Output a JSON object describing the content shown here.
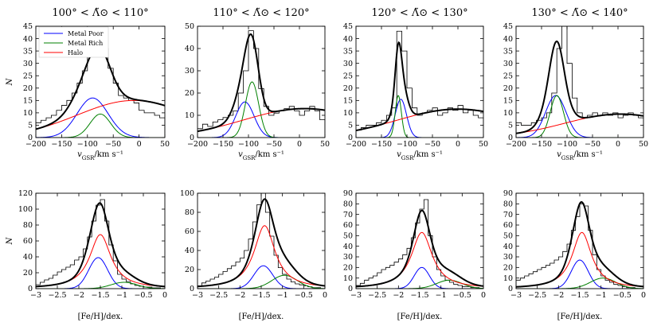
{
  "figure": {
    "ylabel": "N",
    "legend_entries": [
      {
        "label": "Metal Poor",
        "color": "#0000ff"
      },
      {
        "label": "Metal Rich",
        "color": "#008000"
      },
      {
        "label": "Halo",
        "color": "#ff0000"
      }
    ],
    "colors": {
      "metal_poor": "#0000ff",
      "metal_rich": "#008000",
      "halo": "#ff0000",
      "total": "#000000",
      "histogram": "#000000"
    }
  },
  "chart_data": [
    {
      "type": "line",
      "row": "velocity",
      "column": 1,
      "title": "100° < Λ̃⊙ < 110°",
      "xlabel": "vGSR/km s⁻¹",
      "ylabel": "N",
      "xlim": [
        -200,
        50
      ],
      "ylim": [
        0,
        45
      ],
      "xticks": [
        -200,
        -150,
        -100,
        -50,
        0,
        50
      ],
      "yticks": [
        0,
        5,
        10,
        15,
        20,
        25,
        30,
        35,
        40,
        45
      ],
      "legend": "top-left",
      "histogram": {
        "edges": [
          -200,
          -190,
          -180,
          -170,
          -160,
          -150,
          -140,
          -130,
          -120,
          -110,
          -100,
          -90,
          -80,
          -70,
          -60,
          -50,
          -40,
          -30,
          -20,
          -10,
          0,
          10,
          20,
          30,
          40,
          50
        ],
        "counts": [
          6,
          7,
          8,
          9,
          11,
          13,
          15,
          18,
          22,
          27,
          33,
          38,
          42,
          36,
          28,
          22,
          17,
          16,
          15,
          14,
          11,
          10,
          10,
          9,
          8
        ]
      },
      "series": [
        {
          "name": "Metal Poor",
          "color": "#0000ff",
          "model": "gaussian",
          "amplitude": 16,
          "mean": -90,
          "sigma": 30
        },
        {
          "name": "Metal Rich",
          "color": "#008000",
          "model": "gaussian",
          "amplitude": 9.5,
          "mean": -75,
          "sigma": 20
        },
        {
          "name": "Halo",
          "color": "#ff0000",
          "model": "gaussian",
          "amplitude": 15,
          "mean": -10,
          "sigma": 110
        },
        {
          "name": "Total",
          "color": "#000000",
          "model": "sum"
        }
      ]
    },
    {
      "type": "line",
      "row": "velocity",
      "column": 2,
      "title": "110° < Λ̃⊙ < 120°",
      "xlabel": "vGSR/km s⁻¹",
      "ylabel": "",
      "xlim": [
        -200,
        50
      ],
      "ylim": [
        0,
        50
      ],
      "xticks": [
        -200,
        -150,
        -100,
        -50,
        0,
        50
      ],
      "yticks": [
        0,
        10,
        20,
        30,
        40,
        50
      ],
      "histogram": {
        "edges": [
          -200,
          -190,
          -180,
          -170,
          -160,
          -150,
          -140,
          -130,
          -120,
          -110,
          -100,
          -90,
          -80,
          -70,
          -60,
          -50,
          -40,
          -30,
          -20,
          -10,
          0,
          10,
          20,
          30,
          40,
          50
        ],
        "counts": [
          4,
          6,
          5,
          7,
          8,
          9,
          10,
          12,
          20,
          30,
          48,
          40,
          22,
          14,
          10,
          11,
          12,
          13,
          14,
          12,
          10,
          12,
          14,
          12,
          8
        ]
      },
      "series": [
        {
          "name": "Metal Poor",
          "color": "#0000ff",
          "model": "gaussian",
          "amplitude": 16,
          "mean": -107,
          "sigma": 18
        },
        {
          "name": "Metal Rich",
          "color": "#008000",
          "model": "gaussian",
          "amplitude": 25,
          "mean": -93,
          "sigma": 13
        },
        {
          "name": "Halo",
          "color": "#ff0000",
          "model": "gaussian",
          "amplitude": 13,
          "mean": 10,
          "sigma": 120
        },
        {
          "name": "Total",
          "color": "#000000",
          "model": "sum"
        }
      ]
    },
    {
      "type": "line",
      "row": "velocity",
      "column": 3,
      "title": "120° < Λ̃⊙ < 130°",
      "xlabel": "vGSR/km s⁻¹",
      "ylabel": "",
      "xlim": [
        -200,
        50
      ],
      "ylim": [
        0,
        45
      ],
      "xticks": [
        -200,
        -150,
        -100,
        -50,
        0,
        50
      ],
      "yticks": [
        0,
        5,
        10,
        15,
        20,
        25,
        30,
        35,
        40,
        45
      ],
      "histogram": {
        "edges": [
          -200,
          -190,
          -180,
          -170,
          -160,
          -150,
          -140,
          -130,
          -120,
          -110,
          -100,
          -90,
          -80,
          -70,
          -60,
          -50,
          -40,
          -30,
          -20,
          -10,
          0,
          10,
          20,
          30,
          40,
          50
        ],
        "counts": [
          3,
          4,
          5,
          5,
          6,
          7,
          9,
          12,
          43,
          35,
          20,
          12,
          9,
          10,
          11,
          12,
          9,
          10,
          12,
          11,
          13,
          10,
          11,
          9,
          8
        ]
      },
      "series": [
        {
          "name": "Metal Poor",
          "color": "#0000ff",
          "model": "gaussian",
          "amplitude": 15.5,
          "mean": -112,
          "sigma": 11
        },
        {
          "name": "Metal Rich",
          "color": "#008000",
          "model": "gaussian",
          "amplitude": 17,
          "mean": -117,
          "sigma": 6
        },
        {
          "name": "Halo",
          "color": "#ff0000",
          "model": "gaussian",
          "amplitude": 11.5,
          "mean": 0,
          "sigma": 120
        },
        {
          "name": "Total",
          "color": "#000000",
          "model": "sum"
        }
      ]
    },
    {
      "type": "line",
      "row": "velocity",
      "column": 4,
      "title": "130° < Λ̃⊙ < 140°",
      "xlabel": "vGSR/km s⁻¹",
      "ylabel": "",
      "xlim": [
        -200,
        50
      ],
      "ylim": [
        0,
        45
      ],
      "xticks": [
        -200,
        -150,
        -100,
        -50,
        0,
        50
      ],
      "yticks": [
        0,
        5,
        10,
        15,
        20,
        25,
        30,
        35,
        40,
        45
      ],
      "histogram": {
        "edges": [
          -200,
          -190,
          -180,
          -170,
          -160,
          -150,
          -140,
          -130,
          -120,
          -110,
          -100,
          -90,
          -80,
          -70,
          -60,
          -50,
          -40,
          -30,
          -20,
          -10,
          0,
          10,
          20,
          30,
          40,
          50
        ],
        "counts": [
          6,
          5,
          5,
          6,
          7,
          8,
          10,
          18,
          36,
          45,
          30,
          16,
          10,
          8,
          9,
          10,
          9,
          10,
          9,
          10,
          8,
          9,
          10,
          9,
          8
        ]
      },
      "series": [
        {
          "name": "Metal Poor",
          "color": "#0000ff",
          "model": "gaussian",
          "amplitude": 17,
          "mean": -122,
          "sigma": 20
        },
        {
          "name": "Metal Rich",
          "color": "#008000",
          "model": "gaussian",
          "amplitude": 17,
          "mean": -120,
          "sigma": 13
        },
        {
          "name": "Halo",
          "color": "#ff0000",
          "model": "gaussian",
          "amplitude": 9.5,
          "mean": 5,
          "sigma": 110
        },
        {
          "name": "Total",
          "color": "#000000",
          "model": "sum"
        }
      ]
    },
    {
      "type": "line",
      "row": "metallicity",
      "column": 1,
      "title": "",
      "xlabel": "[Fe/H]/dex.",
      "ylabel": "N",
      "xlim": [
        -3.0,
        0.0
      ],
      "ylim": [
        0,
        120
      ],
      "xticks": [
        -3.0,
        -2.5,
        -2.0,
        -1.5,
        -1.0,
        -0.5,
        0.0
      ],
      "yticks": [
        0,
        20,
        40,
        60,
        80,
        100,
        120
      ],
      "histogram": {
        "edges": [
          -3.0,
          -2.9,
          -2.8,
          -2.7,
          -2.6,
          -2.5,
          -2.4,
          -2.3,
          -2.2,
          -2.1,
          -2.0,
          -1.9,
          -1.8,
          -1.7,
          -1.6,
          -1.5,
          -1.4,
          -1.3,
          -1.2,
          -1.1,
          -1.0,
          -0.9,
          -0.8,
          -0.7,
          -0.6,
          -0.5,
          -0.4,
          -0.3,
          -0.2,
          -0.1,
          0.0
        ],
        "counts": [
          5,
          8,
          11,
          13,
          17,
          21,
          24,
          27,
          30,
          36,
          40,
          50,
          65,
          85,
          105,
          112,
          85,
          55,
          35,
          18,
          12,
          9,
          6,
          4,
          3,
          2,
          2,
          1,
          1,
          0
        ]
      },
      "series": [
        {
          "name": "Metal Poor",
          "color": "#0000ff",
          "model": "gaussian",
          "amplitude": 39,
          "mean": -1.55,
          "sigma": 0.22
        },
        {
          "name": "Metal Rich",
          "color": "#008000",
          "model": "gaussian",
          "amplitude": 8,
          "mean": -0.95,
          "sigma": 0.3
        },
        {
          "name": "Halo",
          "color": "#ff0000",
          "model": "lorentzian",
          "amplitude": 68,
          "mean": -1.5,
          "gamma": 0.3
        },
        {
          "name": "Total",
          "color": "#000000",
          "model": "sum"
        }
      ]
    },
    {
      "type": "line",
      "row": "metallicity",
      "column": 2,
      "title": "",
      "xlabel": "[Fe/H]/dex.",
      "ylabel": "",
      "xlim": [
        -3.0,
        0.0
      ],
      "ylim": [
        0,
        100
      ],
      "xticks": [
        -3.0,
        -2.5,
        -2.0,
        -1.5,
        -1.0,
        -0.5,
        0.0
      ],
      "yticks": [
        0,
        20,
        40,
        60,
        80,
        100
      ],
      "histogram": {
        "edges": [
          -3.0,
          -2.9,
          -2.8,
          -2.7,
          -2.6,
          -2.5,
          -2.4,
          -2.3,
          -2.2,
          -2.1,
          -2.0,
          -1.9,
          -1.8,
          -1.7,
          -1.6,
          -1.5,
          -1.4,
          -1.3,
          -1.2,
          -1.1,
          -1.0,
          -0.9,
          -0.8,
          -0.7,
          -0.6,
          -0.5,
          -0.4,
          -0.3,
          -0.2,
          -0.1,
          0.0
        ],
        "counts": [
          3,
          6,
          8,
          10,
          12,
          15,
          18,
          21,
          24,
          28,
          32,
          40,
          52,
          70,
          88,
          100,
          80,
          55,
          35,
          22,
          15,
          10,
          7,
          5,
          4,
          3,
          2,
          1,
          1,
          0
        ]
      },
      "series": [
        {
          "name": "Metal Poor",
          "color": "#0000ff",
          "model": "gaussian",
          "amplitude": 24,
          "mean": -1.45,
          "sigma": 0.22
        },
        {
          "name": "Metal Rich",
          "color": "#008000",
          "model": "gaussian",
          "amplitude": 14,
          "mean": -0.95,
          "sigma": 0.3
        },
        {
          "name": "Halo",
          "color": "#ff0000",
          "model": "lorentzian",
          "amplitude": 66,
          "mean": -1.42,
          "gamma": 0.3
        },
        {
          "name": "Total",
          "color": "#000000",
          "model": "sum"
        }
      ]
    },
    {
      "type": "line",
      "row": "metallicity",
      "column": 3,
      "title": "",
      "xlabel": "[Fe/H]/dex.",
      "ylabel": "",
      "xlim": [
        -3.0,
        0.0
      ],
      "ylim": [
        0,
        90
      ],
      "xticks": [
        -3.0,
        -2.5,
        -2.0,
        -1.5,
        -1.0,
        -0.5,
        0.0
      ],
      "yticks": [
        0,
        10,
        20,
        30,
        40,
        50,
        60,
        70,
        80,
        90
      ],
      "histogram": {
        "edges": [
          -3.0,
          -2.9,
          -2.8,
          -2.7,
          -2.6,
          -2.5,
          -2.4,
          -2.3,
          -2.2,
          -2.1,
          -2.0,
          -1.9,
          -1.8,
          -1.7,
          -1.6,
          -1.5,
          -1.4,
          -1.3,
          -1.2,
          -1.1,
          -1.0,
          -0.9,
          -0.8,
          -0.7,
          -0.6,
          -0.5,
          -0.4,
          -0.3,
          -0.2,
          -0.1,
          0.0
        ],
        "counts": [
          3,
          5,
          8,
          10,
          12,
          15,
          18,
          20,
          22,
          25,
          28,
          32,
          38,
          48,
          62,
          75,
          84,
          50,
          30,
          18,
          12,
          8,
          6,
          4,
          3,
          2,
          2,
          1,
          1,
          0
        ]
      },
      "series": [
        {
          "name": "Metal Poor",
          "color": "#0000ff",
          "model": "gaussian",
          "amplitude": 20,
          "mean": -1.45,
          "sigma": 0.18
        },
        {
          "name": "Metal Rich",
          "color": "#008000",
          "model": "gaussian",
          "amplitude": 8,
          "mean": -0.8,
          "sigma": 0.3
        },
        {
          "name": "Halo",
          "color": "#ff0000",
          "model": "lorentzian",
          "amplitude": 53,
          "mean": -1.45,
          "gamma": 0.3
        },
        {
          "name": "Total",
          "color": "#000000",
          "model": "sum"
        }
      ]
    },
    {
      "type": "line",
      "row": "metallicity",
      "column": 4,
      "title": "",
      "xlabel": "[Fe/H]/dex.",
      "ylabel": "",
      "xlim": [
        -3.0,
        0.0
      ],
      "ylim": [
        0,
        90
      ],
      "xticks": [
        -3.0,
        -2.5,
        -2.0,
        -1.5,
        -1.0,
        -0.5,
        0.0
      ],
      "yticks": [
        0,
        10,
        20,
        30,
        40,
        50,
        60,
        70,
        80,
        90
      ],
      "histogram": {
        "edges": [
          -3.0,
          -2.9,
          -2.8,
          -2.7,
          -2.6,
          -2.5,
          -2.4,
          -2.3,
          -2.2,
          -2.1,
          -2.0,
          -1.9,
          -1.8,
          -1.7,
          -1.6,
          -1.5,
          -1.4,
          -1.3,
          -1.2,
          -1.1,
          -1.0,
          -0.9,
          -0.8,
          -0.7,
          -0.6,
          -0.5,
          -0.4,
          -0.3,
          -0.2,
          -0.1,
          0.0
        ],
        "counts": [
          8,
          10,
          12,
          14,
          16,
          18,
          20,
          22,
          24,
          27,
          30,
          35,
          42,
          55,
          68,
          80,
          78,
          55,
          32,
          18,
          12,
          8,
          6,
          4,
          3,
          2,
          1,
          1,
          0,
          0
        ]
      },
      "series": [
        {
          "name": "Metal Poor",
          "color": "#0000ff",
          "model": "gaussian",
          "amplitude": 27,
          "mean": -1.5,
          "sigma": 0.2
        },
        {
          "name": "Metal Rich",
          "color": "#008000",
          "model": "gaussian",
          "amplitude": 10,
          "mean": -0.95,
          "sigma": 0.3
        },
        {
          "name": "Halo",
          "color": "#ff0000",
          "model": "lorentzian",
          "amplitude": 53,
          "mean": -1.45,
          "gamma": 0.28
        },
        {
          "name": "Total",
          "color": "#000000",
          "model": "sum"
        }
      ]
    }
  ]
}
